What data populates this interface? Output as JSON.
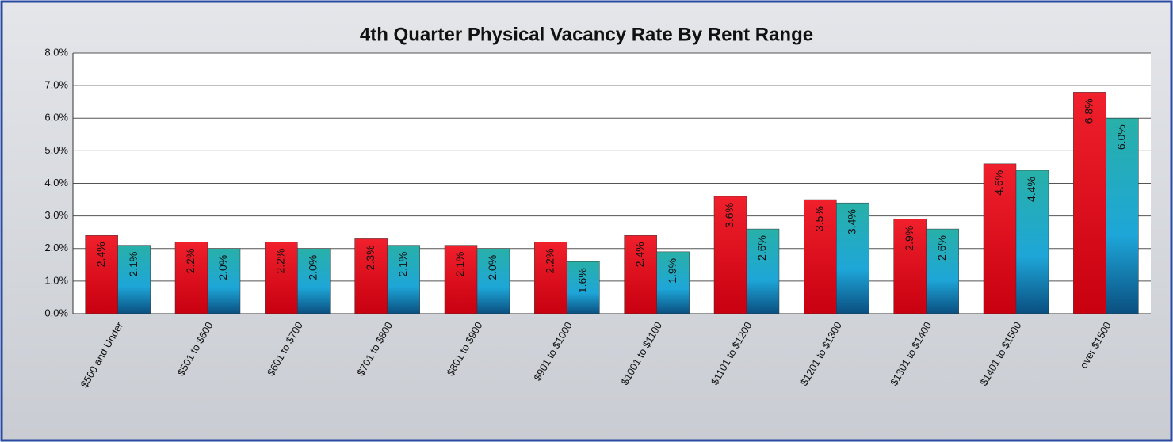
{
  "chart_data": {
    "type": "bar",
    "title": "4th Quarter Physical Vacancy Rate By Rent Range",
    "categories": [
      "$500 and Under",
      "$501 to $600",
      "$601 to $700",
      "$701 to $800",
      "$801 to $900",
      "$901 to $1000",
      "$1001 to $1100",
      "$1101 to $1200",
      "$1201 to $1300",
      "$1301 to $1400",
      "$1401 to $1500",
      "over $1500"
    ],
    "series": [
      {
        "color": "#e8101e",
        "values": [
          2.4,
          2.2,
          2.2,
          2.3,
          2.1,
          2.2,
          2.4,
          3.6,
          3.5,
          2.9,
          4.6,
          6.8
        ],
        "value_labels": [
          "2.4%",
          "2.2%",
          "2.2%",
          "2.3%",
          "2.1%",
          "2.2%",
          "2.4%",
          "3.6%",
          "3.5%",
          "2.9%",
          "4.6%",
          "6.8%"
        ]
      },
      {
        "color": "#1ea6d8",
        "values": [
          2.1,
          2.0,
          2.0,
          2.1,
          2.0,
          1.6,
          1.9,
          2.6,
          3.4,
          2.6,
          4.4,
          6.0
        ],
        "value_labels": [
          "2.1%",
          "2.0%",
          "2.0%",
          "2.1%",
          "2.0%",
          "1.6%",
          "1.9%",
          "2.6%",
          "3.4%",
          "2.6%",
          "4.4%",
          "6.0%"
        ]
      }
    ],
    "ylim": [
      0,
      8
    ],
    "yticks": [
      {
        "value": 0,
        "label": "0.0%"
      },
      {
        "value": 1,
        "label": "1.0%"
      },
      {
        "value": 2,
        "label": "2.0%"
      },
      {
        "value": 3,
        "label": "3.0%"
      },
      {
        "value": 4,
        "label": "4.0%"
      },
      {
        "value": 5,
        "label": "5.0%"
      },
      {
        "value": 6,
        "label": "6.0%"
      },
      {
        "value": 7,
        "label": "7.0%"
      },
      {
        "value": 8,
        "label": "8.0%"
      }
    ],
    "grid": true
  }
}
